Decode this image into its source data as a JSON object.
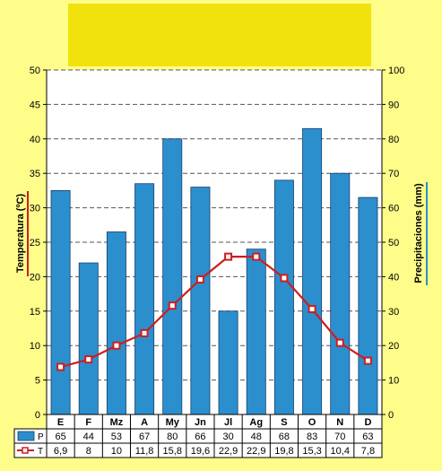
{
  "chart_data": {
    "type": "bar",
    "title": "",
    "categories": [
      "E",
      "F",
      "Mz",
      "A",
      "My",
      "Jn",
      "Jl",
      "Ag",
      "S",
      "O",
      "N",
      "D"
    ],
    "left_axis": {
      "label": "Temperatura (ºC)",
      "range": [
        0,
        50
      ],
      "ticks": [
        0,
        5,
        10,
        15,
        20,
        25,
        30,
        35,
        40,
        45,
        50
      ]
    },
    "right_axis": {
      "label": "Precipitaciones (mm)",
      "range": [
        0,
        100
      ],
      "ticks": [
        0,
        10,
        20,
        30,
        40,
        50,
        60,
        70,
        80,
        90,
        100
      ]
    },
    "series": [
      {
        "name": "P",
        "type": "bar",
        "axis": "right",
        "color": "#2b8fce",
        "values": [
          65,
          44,
          53,
          67,
          80,
          66,
          30,
          48,
          68,
          83,
          70,
          63
        ],
        "labels": [
          "65",
          "44",
          "53",
          "67",
          "80",
          "66",
          "30",
          "48",
          "68",
          "83",
          "70",
          "63"
        ]
      },
      {
        "name": "T",
        "type": "line",
        "axis": "left",
        "color": "#cc1f1f",
        "values": [
          6.9,
          8,
          10,
          11.8,
          15.8,
          19.6,
          22.9,
          22.9,
          19.8,
          15.3,
          10.4,
          7.8
        ],
        "labels": [
          "6,9",
          "8",
          "10",
          "11,8",
          "15,8",
          "19,6",
          "22,9",
          "22,9",
          "19,8",
          "15,3",
          "10,4",
          "7,8"
        ]
      }
    ],
    "grid": "horizontal dashed lines on the right axis",
    "legend": "data table below the plot"
  },
  "colors": {
    "background": "#fefd8a",
    "title_box": "#f1e20d"
  }
}
